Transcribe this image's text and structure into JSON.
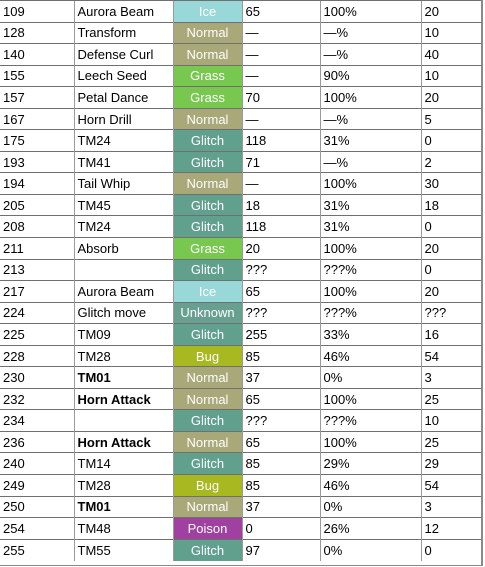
{
  "type_colors": {
    "Ice": "#98d8d8",
    "Normal": "#a8a878",
    "Grass": "#78c850",
    "Glitch": "#60a08c",
    "Unknown": "#68a090",
    "Bug": "#a8b820",
    "Poison": "#a040a0"
  },
  "rows": [
    {
      "num": "109",
      "name": "Aurora Beam",
      "bold": false,
      "type": "Ice",
      "power": "65",
      "accuracy": "100%",
      "pp": "20"
    },
    {
      "num": "128",
      "name": "Transform",
      "bold": false,
      "type": "Normal",
      "power": "—",
      "accuracy": "—%",
      "pp": "10"
    },
    {
      "num": "140",
      "name": "Defense Curl",
      "bold": false,
      "type": "Normal",
      "power": "—",
      "accuracy": "—%",
      "pp": "40"
    },
    {
      "num": "155",
      "name": "Leech Seed",
      "bold": false,
      "type": "Grass",
      "power": "—",
      "accuracy": "90%",
      "pp": "10"
    },
    {
      "num": "157",
      "name": "Petal Dance",
      "bold": false,
      "type": "Grass",
      "power": "70",
      "accuracy": "100%",
      "pp": "20"
    },
    {
      "num": "167",
      "name": "Horn Drill",
      "bold": false,
      "type": "Normal",
      "power": "—",
      "accuracy": "—%",
      "pp": "5"
    },
    {
      "num": "175",
      "name": "TM24",
      "bold": false,
      "type": "Glitch",
      "power": "118",
      "accuracy": "31%",
      "pp": "0"
    },
    {
      "num": "193",
      "name": "TM41",
      "bold": false,
      "type": "Glitch",
      "power": "71",
      "accuracy": "—%",
      "pp": "2"
    },
    {
      "num": "194",
      "name": "Tail Whip",
      "bold": false,
      "type": "Normal",
      "power": "—",
      "accuracy": "100%",
      "pp": "30"
    },
    {
      "num": "205",
      "name": "TM45",
      "bold": false,
      "type": "Glitch",
      "power": "18",
      "accuracy": "31%",
      "pp": "18"
    },
    {
      "num": "208",
      "name": "TM24",
      "bold": false,
      "type": "Glitch",
      "power": "118",
      "accuracy": "31%",
      "pp": "0"
    },
    {
      "num": "211",
      "name": "Absorb",
      "bold": false,
      "type": "Grass",
      "power": "20",
      "accuracy": "100%",
      "pp": "20"
    },
    {
      "num": "213",
      "name": "",
      "bold": false,
      "type": "Glitch",
      "power": "???",
      "accuracy": "???%",
      "pp": "0"
    },
    {
      "num": "217",
      "name": "Aurora Beam",
      "bold": false,
      "type": "Ice",
      "power": "65",
      "accuracy": "100%",
      "pp": "20"
    },
    {
      "num": "224",
      "name": "Glitch move",
      "bold": false,
      "type": "Unknown",
      "power": "???",
      "accuracy": "???%",
      "pp": "???"
    },
    {
      "num": "225",
      "name": "TM09",
      "bold": false,
      "type": "Glitch",
      "power": "255",
      "accuracy": "33%",
      "pp": "16"
    },
    {
      "num": "228",
      "name": "TM28",
      "bold": false,
      "type": "Bug",
      "power": "85",
      "accuracy": "46%",
      "pp": "54"
    },
    {
      "num": "230",
      "name": "TM01",
      "bold": true,
      "type": "Normal",
      "power": "37",
      "accuracy": "0%",
      "pp": "3"
    },
    {
      "num": "232",
      "name": "Horn Attack",
      "bold": true,
      "type": "Normal",
      "power": "65",
      "accuracy": "100%",
      "pp": "25"
    },
    {
      "num": "234",
      "name": "",
      "bold": false,
      "type": "Glitch",
      "power": "???",
      "accuracy": "???%",
      "pp": "10"
    },
    {
      "num": "236",
      "name": "Horn Attack",
      "bold": true,
      "type": "Normal",
      "power": "65",
      "accuracy": "100%",
      "pp": "25"
    },
    {
      "num": "240",
      "name": "TM14",
      "bold": false,
      "type": "Glitch",
      "power": "85",
      "accuracy": "29%",
      "pp": "29"
    },
    {
      "num": "249",
      "name": "TM28",
      "bold": false,
      "type": "Bug",
      "power": "85",
      "accuracy": "46%",
      "pp": "54"
    },
    {
      "num": "250",
      "name": "TM01",
      "bold": true,
      "type": "Normal",
      "power": "37",
      "accuracy": "0%",
      "pp": "3"
    },
    {
      "num": "254",
      "name": "TM48",
      "bold": false,
      "type": "Poison",
      "power": "0",
      "accuracy": "26%",
      "pp": "12"
    },
    {
      "num": "255",
      "name": "TM55",
      "bold": false,
      "type": "Glitch",
      "power": "97",
      "accuracy": "0%",
      "pp": "0"
    }
  ]
}
